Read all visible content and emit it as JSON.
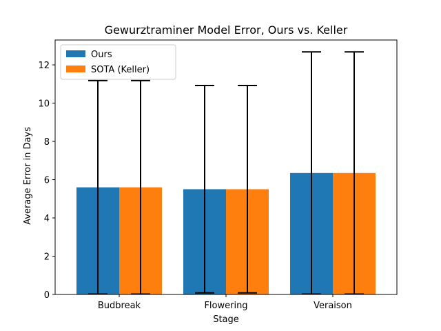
{
  "chart_data": {
    "type": "bar",
    "title": "Gewurztraminer Model Error, Ours vs. Keller",
    "xlabel": "Stage",
    "ylabel": "Average Error in Days",
    "categories": [
      "Budbreak",
      "Flowering",
      "Veraison"
    ],
    "series": [
      {
        "name": "Ours",
        "color": "#1f77b4",
        "values": [
          5.6,
          5.5,
          6.35
        ],
        "errors": [
          5.58,
          5.42,
          6.33
        ]
      },
      {
        "name": "SOTA (Keller)",
        "color": "#ff7f0e",
        "values": [
          5.6,
          5.5,
          6.35
        ],
        "errors": [
          5.58,
          5.42,
          6.33
        ]
      }
    ],
    "ylim": [
      0,
      13.3
    ],
    "yticks": [
      "0",
      "2",
      "4",
      "6",
      "8",
      "10",
      "12"
    ],
    "grid": false,
    "legend": "top-left"
  }
}
